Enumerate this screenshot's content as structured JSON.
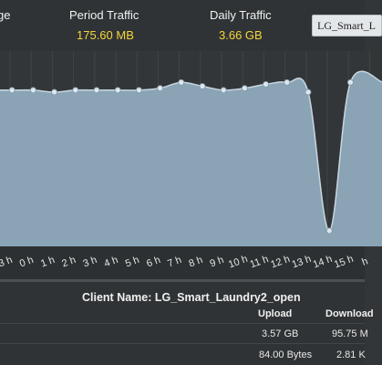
{
  "header": {
    "stats": [
      {
        "label": "ge",
        "value": ""
      },
      {
        "label": "Period Traffic",
        "value": "175.60 MB"
      },
      {
        "label": "Daily Traffic",
        "value": "3.66 GB"
      }
    ],
    "client_tag": "LG_Smart_L"
  },
  "colors": {
    "area_fill": "#8aa4b6",
    "line": "#c8d6e0",
    "point": "#dde7ee",
    "stat_value": "#f6d53b",
    "background": "#333638"
  },
  "chart_data": {
    "type": "area",
    "x_ticks": [
      "3 h",
      "0 h",
      "1 h",
      "2 h",
      "3 h",
      "4 h",
      "5 h",
      "6 h",
      "7 h",
      "8 h",
      "9 h",
      "10 h",
      "11 h",
      "12 h",
      "13 h",
      "14 h",
      "15 h",
      "h"
    ],
    "series": [
      {
        "points": [
          {
            "x": 0,
            "y": 0.8
          },
          {
            "x": 1,
            "y": 0.8
          },
          {
            "x": 2,
            "y": 0.79
          },
          {
            "x": 3,
            "y": 0.8
          },
          {
            "x": 4,
            "y": 0.8
          },
          {
            "x": 5,
            "y": 0.8
          },
          {
            "x": 6,
            "y": 0.8
          },
          {
            "x": 7,
            "y": 0.81
          },
          {
            "x": 8,
            "y": 0.84
          },
          {
            "x": 9,
            "y": 0.82
          },
          {
            "x": 10,
            "y": 0.8
          },
          {
            "x": 11,
            "y": 0.81
          },
          {
            "x": 12,
            "y": 0.83
          },
          {
            "x": 13,
            "y": 0.84
          },
          {
            "x": 14,
            "y": 0.79
          },
          {
            "x": 15,
            "y": 0.08
          },
          {
            "x": 16,
            "y": 0.84
          }
        ]
      }
    ]
  },
  "footer": {
    "client_name": "Client Name: LG_Smart_Laundry2_open",
    "columns": [
      "Upload",
      "Download"
    ],
    "rows": [
      [
        "3.57 GB",
        "95.75 M"
      ],
      [
        "84.00 Bytes",
        "2.81 K"
      ]
    ]
  }
}
